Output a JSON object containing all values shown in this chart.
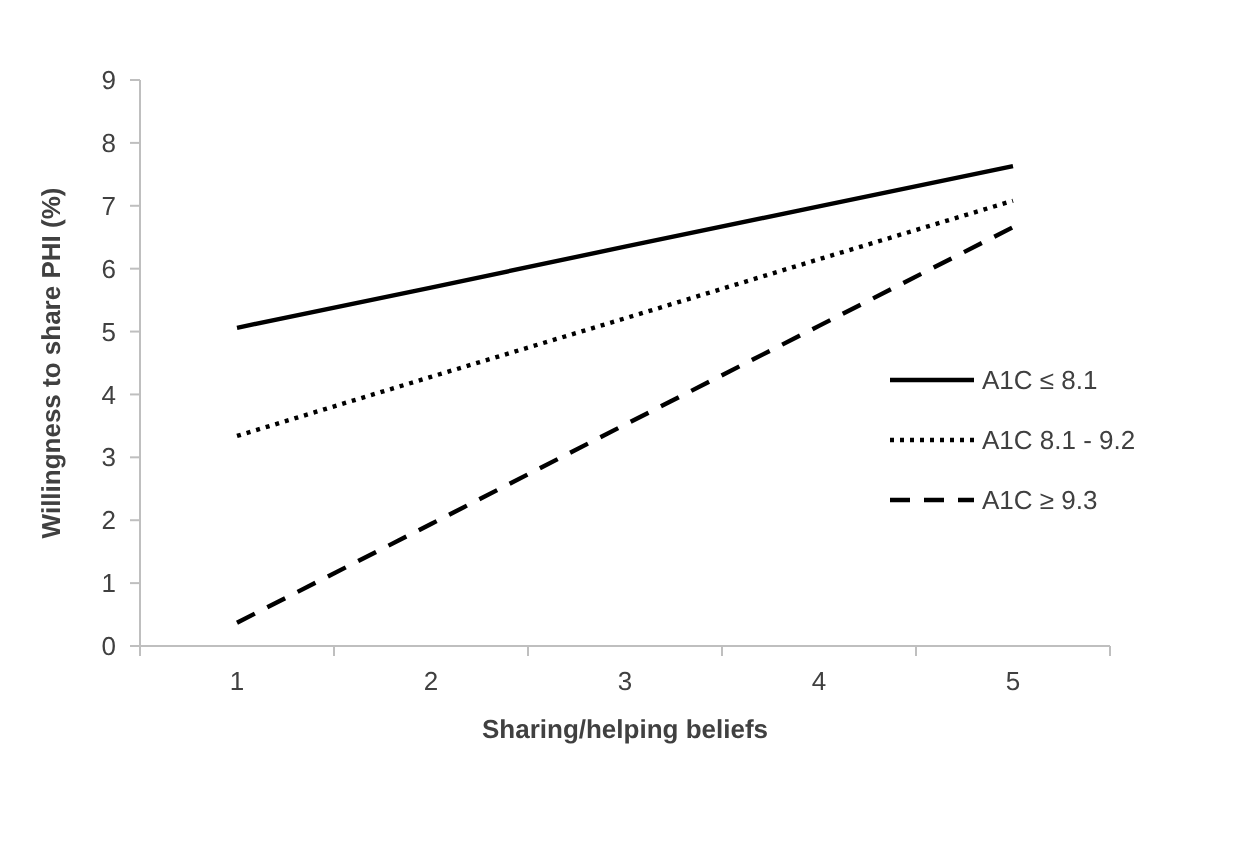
{
  "chart_data": {
    "type": "line",
    "xlabel": "Sharing/helping beliefs",
    "ylabel": "Willingness to share PHI (%)",
    "categories": [
      "1",
      "2",
      "3",
      "4",
      "5"
    ],
    "ylim": [
      0,
      9
    ],
    "yticks": [
      0,
      1,
      2,
      3,
      4,
      5,
      6,
      7,
      8,
      9
    ],
    "grid": false,
    "legend": "right",
    "series": [
      {
        "name": "A1C ≤ 8.1",
        "color": "#000000",
        "line_style": "solid",
        "values": [
          5.06,
          5.7,
          6.35,
          6.99,
          7.63
        ]
      },
      {
        "name": "A1C 8.1 - 9.2",
        "color": "#000000",
        "line_style": "dotted",
        "values": [
          3.34,
          4.28,
          5.21,
          6.15,
          7.08
        ]
      },
      {
        "name": "A1C ≥ 9.3",
        "color": "#000000",
        "line_style": "dashed",
        "values": [
          0.37,
          1.94,
          3.52,
          5.09,
          6.66
        ]
      }
    ]
  }
}
